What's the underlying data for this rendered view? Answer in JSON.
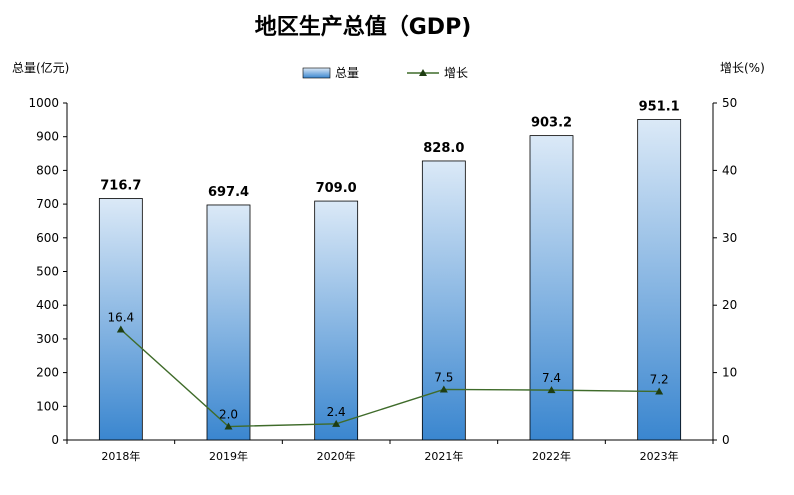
{
  "chart_data": {
    "type": "bar",
    "title": "地区生产总值（GDP)",
    "categories": [
      "2018年",
      "2019年",
      "2020年",
      "2021年",
      "2022年",
      "2023年"
    ],
    "ylabel_left": "总量(亿元)",
    "ylabel_right": "增长(%)",
    "ylim_left": [
      0,
      1000
    ],
    "ylim_right": [
      0,
      50
    ],
    "yticks_left": [
      "0",
      "100",
      "200",
      "300",
      "400",
      "500",
      "600",
      "700",
      "800",
      "900",
      "1000"
    ],
    "yticks_right": [
      "0",
      "10",
      "20",
      "30",
      "40",
      "50"
    ],
    "legend_position": "top-center",
    "grid": false,
    "series": [
      {
        "name": "总量",
        "type": "bar",
        "axis": "left",
        "values": [
          716.7,
          697.4,
          709.0,
          828.0,
          903.2,
          951.1
        ],
        "labels": [
          "716.7",
          "697.4",
          "709.0",
          "828.0",
          "903.2",
          "951.1"
        ],
        "color_top": "#dbe9f7",
        "color_bottom": "#3a86cf"
      },
      {
        "name": "增长",
        "type": "line",
        "axis": "right",
        "values": [
          16.4,
          2.0,
          2.4,
          7.5,
          7.4,
          7.2
        ],
        "labels": [
          "16.4",
          "2.0",
          "2.4",
          "7.5",
          "7.4",
          "7.2"
        ],
        "color": "#3f6b2a",
        "marker": "triangle"
      }
    ]
  }
}
